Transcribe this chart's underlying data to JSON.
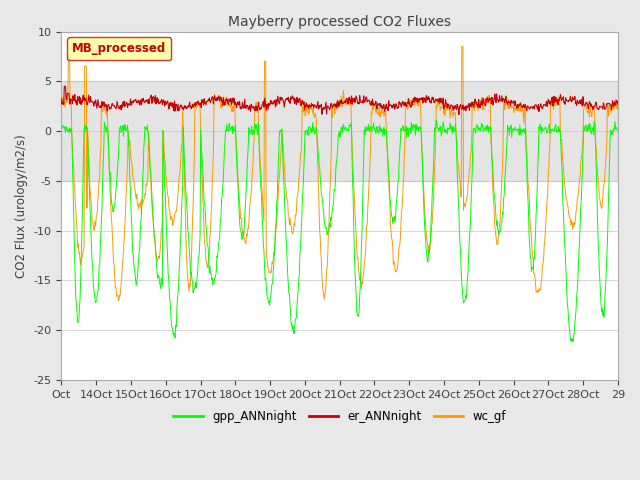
{
  "title": "Mayberry processed CO2 Fluxes",
  "ylabel": "CO2 Flux (urology/m2/s)",
  "ylim": [
    -25,
    10
  ],
  "yticks": [
    10,
    5,
    0,
    -5,
    -10,
    -15,
    -20,
    -25
  ],
  "xlabel_ticks": [
    "Oct",
    "14Oct",
    "15Oct",
    "16Oct",
    "17Oct",
    "18Oct",
    "19Oct",
    "20Oct",
    "21Oct",
    "22Oct",
    "23Oct",
    "24Oct",
    "25Oct",
    "26Oct",
    "27Oct",
    "28Oct",
    "29"
  ],
  "shaded_band_lo": -5,
  "shaded_band_hi": 5,
  "legend_box_label": "MB_processed",
  "legend_box_color": "#cc0000",
  "legend_box_bg": "#ffff99",
  "line_colors": {
    "gpp_ANNnight": "#00ff00",
    "er_ANNnight": "#cc0000",
    "wc_gf": "#ff9900"
  },
  "background_color": "#e8e8e8",
  "plot_bg": "#ffffff",
  "n_points": 960
}
